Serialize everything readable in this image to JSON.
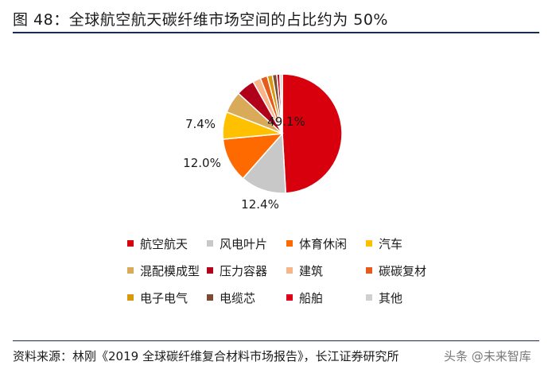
{
  "title": "图 48：全球航空航天碳纤维市场空间的占比约为 50%",
  "source": "资料来源：林刚《2019 全球碳纤维复合材料市场报告》，长江证券研究所",
  "watermark": "头条 @未来智库",
  "chart_data": {
    "type": "pie",
    "slices": [
      {
        "name": "航空航天",
        "value": 49.1,
        "color": "#d9000d",
        "label": "49.1%"
      },
      {
        "name": "风电叶片",
        "value": 12.4,
        "color": "#c8c8c8",
        "label": "12.4%"
      },
      {
        "name": "体育休闲",
        "value": 12.0,
        "color": "#ff6a00",
        "label": "12.0%"
      },
      {
        "name": "汽车",
        "value": 7.4,
        "color": "#ffc000",
        "label": "7.4%"
      },
      {
        "name": "混配模成型",
        "value": 5.9,
        "color": "#d9aa58",
        "color_note": "",
        "label": ""
      },
      {
        "name": "压力容器",
        "value": 5.0,
        "color": "#b0001a",
        "label": ""
      },
      {
        "name": "建筑",
        "value": 2.2,
        "color": "#f7b58a",
        "label": ""
      },
      {
        "name": "碳碳复材",
        "value": 1.9,
        "color": "#e65a1a",
        "label": ""
      },
      {
        "name": "电子电气",
        "value": 1.4,
        "color": "#d9990f",
        "label": ""
      },
      {
        "name": "电缆芯",
        "value": 1.2,
        "color": "#7a4a33",
        "label": ""
      },
      {
        "name": "船舶",
        "value": 0.8,
        "color": "#e0001a",
        "label": ""
      },
      {
        "name": "其他",
        "value": 0.7,
        "color": "#d0d0d0",
        "label": ""
      }
    ]
  }
}
